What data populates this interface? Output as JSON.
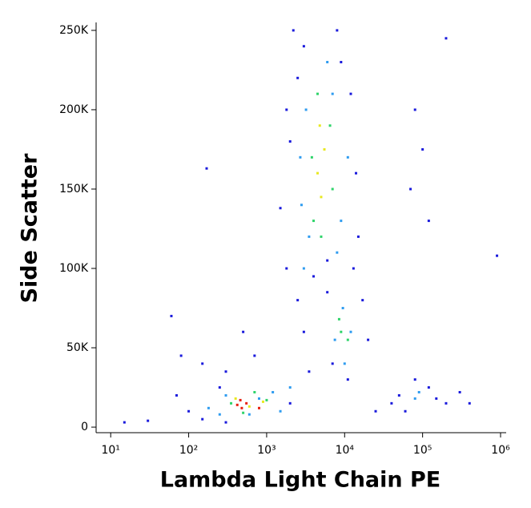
{
  "chart_data": {
    "type": "scatter",
    "x_label": "Lambda Light Chain PE",
    "y_label": "Side Scatter",
    "xscale": "log",
    "xlim": [
      6.5,
      1180000
    ],
    "ylim": [
      -3500,
      255000
    ],
    "xticks": [
      {
        "value": 10,
        "label": "10¹"
      },
      {
        "value": 100,
        "label": "10²"
      },
      {
        "value": 1000,
        "label": "10³"
      },
      {
        "value": 10000,
        "label": "10⁴"
      },
      {
        "value": 100000,
        "label": "10⁵"
      },
      {
        "value": 1000000,
        "label": "10⁶"
      }
    ],
    "yticks": [
      0,
      {
        "value": 50000,
        "label": "50K"
      },
      {
        "value": 100000,
        "label": "100K"
      },
      {
        "value": 150000,
        "label": "150K"
      },
      {
        "value": 200000,
        "label": "200K"
      },
      {
        "value": 250000,
        "label": "250K"
      }
    ],
    "series": [
      {
        "color": "#1a1adc",
        "x": [
          60,
          80,
          150,
          170,
          300,
          500,
          700,
          1500,
          1800,
          2200,
          2500,
          2000,
          3000,
          8000,
          12000,
          14000,
          15000,
          13000,
          2500,
          3000,
          6000,
          7000,
          20000,
          50000,
          80000,
          150000,
          200000,
          300000,
          400000,
          60000,
          40000,
          100,
          150,
          30,
          70,
          100000,
          80000,
          120000,
          70000,
          200000,
          900000,
          15,
          250,
          3500,
          17000,
          6000,
          4000,
          9000,
          1800,
          11000,
          25000,
          120000,
          300,
          2000
        ],
        "values": [
          70000,
          45000,
          40000,
          163000,
          35000,
          60000,
          45000,
          138000,
          100000,
          250000,
          220000,
          180000,
          240000,
          250000,
          210000,
          160000,
          120000,
          100000,
          80000,
          60000,
          85000,
          40000,
          55000,
          20000,
          30000,
          18000,
          15000,
          22000,
          15000,
          10000,
          15000,
          10000,
          5000,
          4000,
          20000,
          175000,
          200000,
          130000,
          150000,
          245000,
          108000,
          3000,
          25000,
          35000,
          80000,
          105000,
          95000,
          230000,
          200000,
          30000,
          10000,
          25000,
          3000,
          15000
        ]
      },
      {
        "color": "#2f9cf0",
        "x": [
          300,
          250,
          800,
          1200,
          1500,
          2000,
          3000,
          2800,
          3200,
          7000,
          9000,
          8000,
          3500,
          9500,
          7500,
          12000,
          10000,
          80000,
          90000,
          6000,
          2700,
          11000,
          600,
          180
        ],
        "values": [
          20000,
          8000,
          18000,
          22000,
          10000,
          25000,
          100000,
          140000,
          200000,
          210000,
          130000,
          110000,
          120000,
          75000,
          55000,
          60000,
          40000,
          18000,
          22000,
          230000,
          170000,
          170000,
          8000,
          12000
        ]
      },
      {
        "color": "#2fd46a",
        "x": [
          350,
          700,
          1000,
          500,
          4000,
          4500,
          3800,
          7000,
          6500,
          5000,
          9000,
          11000,
          8500
        ],
        "values": [
          15000,
          22000,
          17000,
          9000,
          130000,
          210000,
          170000,
          150000,
          190000,
          120000,
          60000,
          55000,
          68000
        ]
      },
      {
        "color": "#e8e820",
        "x": [
          400,
          600,
          900,
          4500,
          5500,
          5000,
          4800
        ],
        "values": [
          18000,
          13000,
          16000,
          160000,
          175000,
          145000,
          190000
        ]
      },
      {
        "color": "#e81e0e",
        "x": [
          420,
          480,
          550,
          800,
          460
        ],
        "values": [
          14000,
          12000,
          15000,
          12000,
          17000
        ]
      }
    ]
  }
}
